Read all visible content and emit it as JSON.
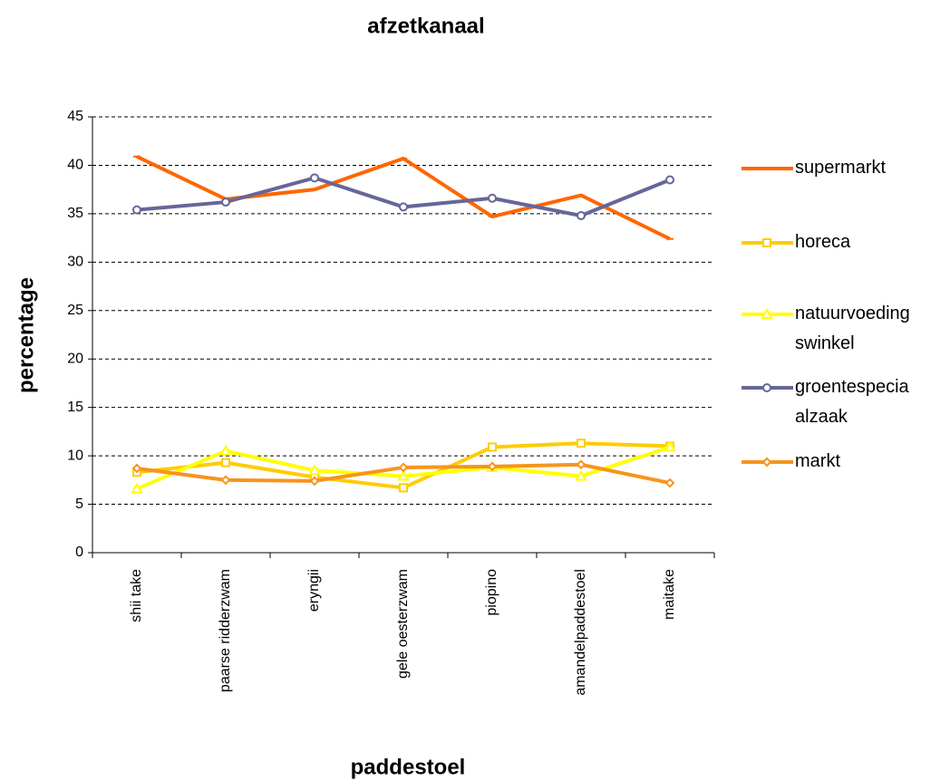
{
  "chart_data": {
    "type": "line",
    "title": "afzetkanaal",
    "x_label": "paddestoel",
    "y_label": "percentage",
    "categories": [
      "shii take",
      "paarse ridderzwam",
      "eryngii",
      "gele oesterzwam",
      "piopino",
      "amandelpaddestoel",
      "maitake"
    ],
    "series": [
      {
        "name": "supermarkt",
        "color": "#ff6600",
        "marker": "dash",
        "values": [
          40.9,
          36.5,
          37.5,
          40.7,
          34.7,
          36.9,
          32.4
        ]
      },
      {
        "name": "horeca",
        "color": "#ffcc00",
        "marker": "square",
        "values": [
          8.3,
          9.3,
          7.8,
          6.7,
          10.9,
          11.3,
          11.0
        ]
      },
      {
        "name": "natuurvoedingswinkel",
        "color": "#ffff00",
        "marker": "triangle",
        "values": [
          6.6,
          10.5,
          8.5,
          7.9,
          8.8,
          7.9,
          10.9
        ]
      },
      {
        "name": "groentespeciaalzaak",
        "color": "#666699",
        "marker": "circle",
        "values": [
          35.4,
          36.2,
          38.7,
          35.7,
          36.6,
          34.8,
          38.5
        ]
      },
      {
        "name": "markt",
        "color": "#f7941d",
        "marker": "diamond",
        "values": [
          8.7,
          7.5,
          7.4,
          8.8,
          8.9,
          9.1,
          7.2
        ]
      }
    ],
    "ylim": [
      0,
      45
    ],
    "yticks": [
      0,
      5,
      10,
      15,
      20,
      25,
      30,
      35,
      40,
      45
    ],
    "grid": true,
    "legend": "right"
  }
}
